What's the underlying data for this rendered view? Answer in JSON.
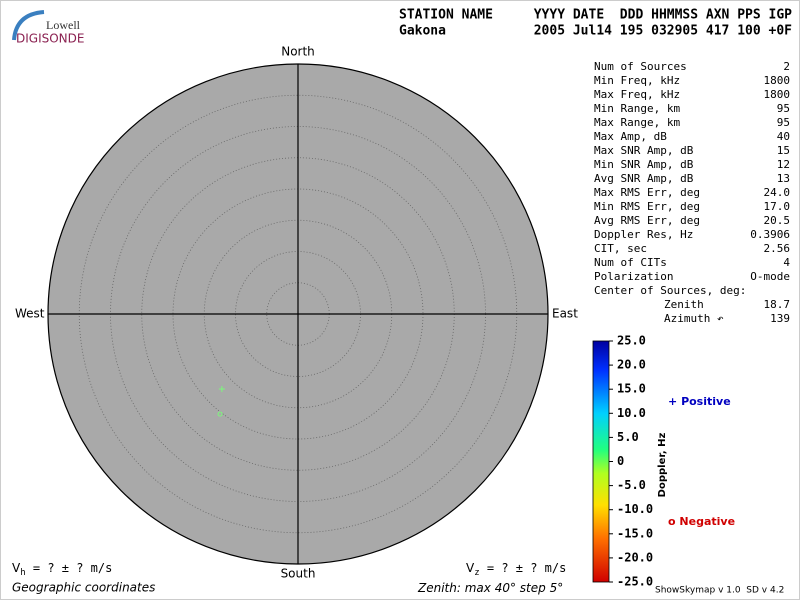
{
  "logo": {
    "top": "Lowell",
    "bottom": "DIGISONDE"
  },
  "header": {
    "labels": [
      "STATION NAME",
      "YYYY DATE  DDD HHMMSS AXN PPS IGP"
    ],
    "values": [
      "Gakona",
      "2005 Jul14 195 032905 417 100 +0F"
    ]
  },
  "stats": {
    "rows": [
      [
        "Num of Sources",
        "2"
      ],
      [
        "Min Freq, kHz",
        "1800"
      ],
      [
        "Max Freq, kHz",
        "1800"
      ],
      [
        "Min Range, km",
        "95"
      ],
      [
        "Max Range, km",
        "95"
      ],
      [
        "Max Amp, dB",
        "40"
      ],
      [
        "Max SNR Amp, dB",
        "15"
      ],
      [
        "Min SNR Amp, dB",
        "12"
      ],
      [
        "Avg SNR Amp, dB",
        "13"
      ],
      [
        "Max RMS Err, deg",
        "24.0"
      ],
      [
        "Min RMS Err, deg",
        "17.0"
      ],
      [
        "Avg RMS Err, deg",
        "20.5"
      ],
      [
        "Doppler Res, Hz",
        "0.3906"
      ],
      [
        "CIT, sec",
        "2.56"
      ],
      [
        "Num of CITs",
        "4"
      ],
      [
        "Polarization",
        "O-mode"
      ]
    ],
    "center": {
      "title": "Center of Sources, deg:",
      "rows": [
        [
          "Zenith",
          "18.7"
        ],
        [
          "Azimuth ↶",
          "139"
        ]
      ]
    }
  },
  "skymap": {
    "directions": {
      "north": "North",
      "south": "South",
      "east": "East",
      "west": "West"
    },
    "zenith_caption": {
      "prefix": "Zenith: max",
      "max": 40,
      "step_prefix": "step",
      "step": 5,
      "unit": "°"
    },
    "coordinates": "Geographic coordinates",
    "sources": [
      {
        "zenith": 17.1,
        "azimuth": 225.4,
        "doppler": 0.39,
        "color": "#7cf87c"
      },
      {
        "zenith": 20.3,
        "azimuth": 217.9,
        "doppler": -0.39,
        "color": "#7cf87c"
      }
    ]
  },
  "velocity": {
    "horizontal": {
      "symbol": "V",
      "sub": "h",
      "text": "=  ? ±  ? m/s"
    },
    "vertical": {
      "symbol": "V",
      "sub": "z",
      "text": "=  ? ±  ? m/s"
    }
  },
  "colorbar": {
    "label": "Doppler, Hz",
    "ylim": [
      -25,
      25
    ],
    "yticks": [
      {
        "value": 25,
        "label": "25.0"
      },
      {
        "value": 20,
        "label": "20.0"
      },
      {
        "value": 15,
        "label": "15.0"
      },
      {
        "value": 10,
        "label": "10.0"
      },
      {
        "value": 5,
        "label": "5.0"
      },
      {
        "value": 0,
        "label": "0"
      },
      {
        "value": -5,
        "label": "-5.0"
      },
      {
        "value": -10,
        "label": "-10.0"
      },
      {
        "value": -15,
        "label": "-15.0"
      },
      {
        "value": -20,
        "label": "-20.0"
      },
      {
        "value": -25,
        "label": "-25.0"
      }
    ],
    "legend": {
      "positive": {
        "symbol": "+",
        "label": "Positive"
      },
      "negative": {
        "symbol": "o",
        "label": "Negative"
      }
    }
  },
  "footer": "ShowSkymap v 1.0  SD v 4.2"
}
